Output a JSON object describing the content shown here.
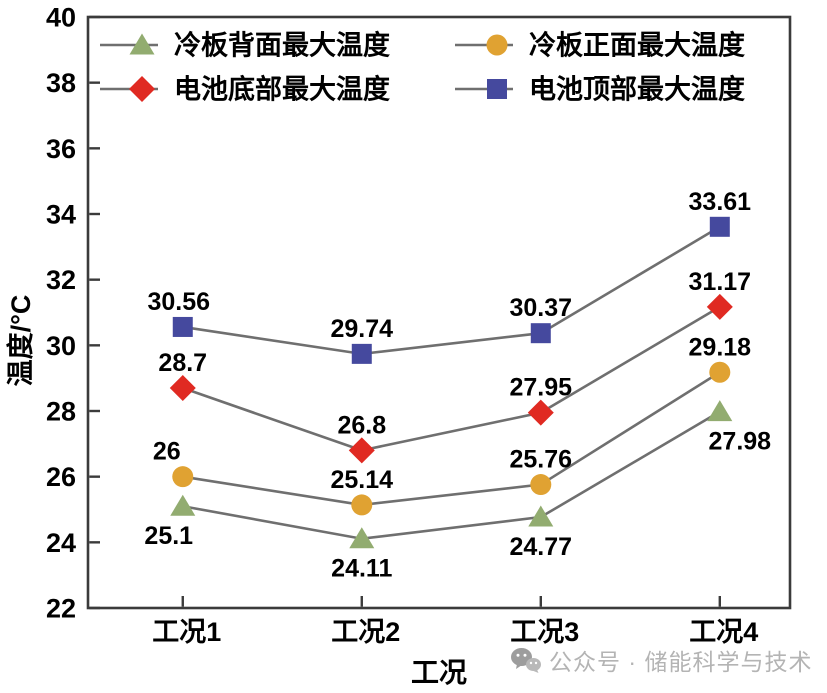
{
  "figure": {
    "background": "#ffffff"
  },
  "watermark": {
    "icon": "wechat-icon",
    "text": "公众号 · 储能科学与技术",
    "color": "#b4b4b4"
  },
  "chart_data": {
    "type": "line",
    "title": "",
    "categories": [
      "工况1",
      "工况2",
      "工况3",
      "工况4"
    ],
    "series": [
      {
        "name": "冷板背面最大温度",
        "marker": "triangle",
        "color": "#92ac70",
        "values": [
          25.1,
          24.11,
          24.77,
          27.98
        ],
        "label_position": "below"
      },
      {
        "name": "冷板正面最大温度",
        "marker": "circle",
        "color": "#e0a232",
        "values": [
          26,
          25.14,
          25.76,
          29.18
        ],
        "label_position": "above"
      },
      {
        "name": "电池底部最大温度",
        "marker": "diamond",
        "color": "#e02a22",
        "values": [
          28.7,
          26.8,
          27.95,
          31.17
        ],
        "label_position": "above"
      },
      {
        "name": "电池顶部最大温度",
        "marker": "square",
        "color": "#45499e",
        "values": [
          30.56,
          29.74,
          30.37,
          33.61
        ],
        "label_position": "above"
      }
    ],
    "xlabel": "工况",
    "ylabel": "温度/°C",
    "ylim": [
      22,
      40
    ],
    "yticks": [
      22,
      24,
      26,
      28,
      30,
      32,
      34,
      36,
      38,
      40
    ],
    "grid": false,
    "legend_position": "top-inside-two-columns",
    "line_color": "#6f6f6f",
    "axis_color": "#3b3b3b",
    "text_color": "#000000"
  }
}
